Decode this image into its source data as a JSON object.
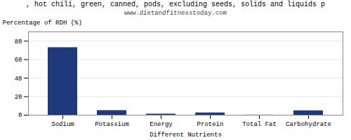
{
  "chart_data": {
    "type": "bar",
    "title": ", hot chili, green, canned, pods, excluding seeds, solids and liquids p",
    "subtitle": "www.dietandfitnesstoday.com",
    "xlabel": "Different Nutrients",
    "ylabel": "Percentage of RDH (%)",
    "categories": [
      "Sodium",
      "Potassium",
      "Energy",
      "Protein",
      "Total Fat",
      "Carbohydrate"
    ],
    "values": [
      73.0,
      5.0,
      1.2,
      2.5,
      0.1,
      4.8
    ],
    "color": "#1f3a7a",
    "ylim": [
      0,
      90
    ],
    "yticks": [
      0,
      20,
      40,
      60,
      80
    ],
    "grid": true
  }
}
